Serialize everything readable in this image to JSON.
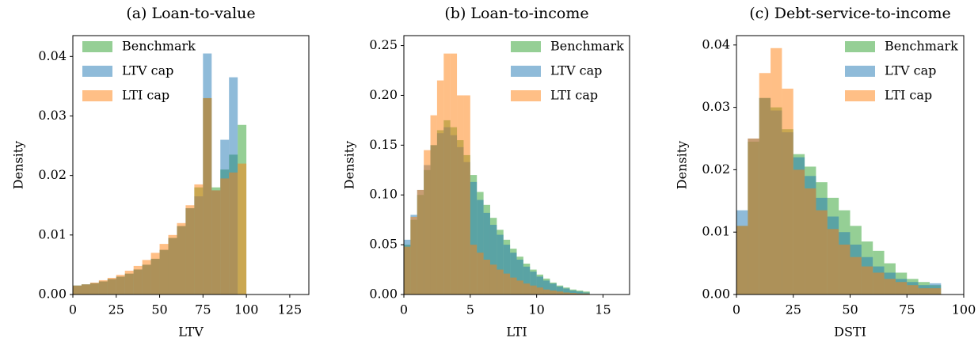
{
  "chart_data": [
    {
      "type": "histogram",
      "title": "(a) Loan-to-value",
      "x_label": "LTV",
      "y_label": "Density",
      "bins": [
        0,
        5,
        10,
        15,
        20,
        25,
        30,
        35,
        40,
        45,
        50,
        55,
        60,
        65,
        70,
        75,
        80,
        85,
        90,
        95,
        100
      ],
      "series": [
        {
          "name": "Benchmark",
          "color": "#2ca02c",
          "values": [
            0.0015,
            0.0017,
            0.0019,
            0.0022,
            0.0026,
            0.003,
            0.0035,
            0.0042,
            0.005,
            0.006,
            0.0075,
            0.0095,
            0.0115,
            0.0145,
            0.018,
            0.033,
            0.018,
            0.021,
            0.0235,
            0.0285
          ]
        },
        {
          "name": "LTV cap",
          "color": "#1f77b4",
          "values": [
            0.0015,
            0.0017,
            0.0019,
            0.0022,
            0.0026,
            0.003,
            0.0035,
            0.0042,
            0.005,
            0.006,
            0.0075,
            0.0095,
            0.0115,
            0.0145,
            0.0165,
            0.0405,
            0.0175,
            0.026,
            0.0365,
            0
          ]
        },
        {
          "name": "LTI cap",
          "color": "#ff7f0e",
          "values": [
            0.0015,
            0.0017,
            0.002,
            0.0024,
            0.0028,
            0.0033,
            0.004,
            0.0048,
            0.0058,
            0.007,
            0.0085,
            0.01,
            0.012,
            0.015,
            0.0185,
            0.033,
            0.0175,
            0.0195,
            0.0205,
            0.022
          ]
        }
      ],
      "opacity": 0.5,
      "legend": "upper left",
      "xlim": [
        0,
        136
      ],
      "xticks": [
        0,
        25,
        50,
        75,
        100,
        125
      ],
      "ylim": [
        0,
        0.0435
      ],
      "yticks": [
        {
          "value": 0,
          "label": "0.00"
        },
        {
          "value": 0.01,
          "label": "0.01"
        },
        {
          "value": 0.02,
          "label": "0.02"
        },
        {
          "value": 0.03,
          "label": "0.03"
        },
        {
          "value": 0.04,
          "label": "0.04"
        }
      ]
    },
    {
      "type": "histogram",
      "title": "(b) Loan-to-income",
      "x_label": "LTI",
      "y_label": "Density",
      "bins": [
        0,
        0.5,
        1,
        1.5,
        2,
        2.5,
        3,
        3.5,
        4,
        4.5,
        5,
        5.5,
        6,
        6.5,
        7,
        7.5,
        8,
        8.5,
        9,
        9.5,
        10,
        10.5,
        11,
        11.5,
        12,
        12.5,
        13,
        13.5,
        14
      ],
      "series": [
        {
          "name": "Benchmark",
          "color": "#2ca02c",
          "values": [
            0.05,
            0.075,
            0.1,
            0.125,
            0.15,
            0.165,
            0.175,
            0.168,
            0.155,
            0.14,
            0.12,
            0.103,
            0.09,
            0.077,
            0.065,
            0.055,
            0.046,
            0.038,
            0.031,
            0.025,
            0.02,
            0.016,
            0.012,
            0.009,
            0.007,
            0.005,
            0.004,
            0.003
          ]
        },
        {
          "name": "LTV cap",
          "color": "#1f77b4",
          "values": [
            0.055,
            0.08,
            0.105,
            0.13,
            0.15,
            0.162,
            0.168,
            0.16,
            0.148,
            0.133,
            0.113,
            0.095,
            0.082,
            0.07,
            0.06,
            0.05,
            0.042,
            0.035,
            0.028,
            0.023,
            0.018,
            0.014,
            0.011,
            0.008,
            0.006,
            0.004,
            0.003,
            0.002
          ]
        },
        {
          "name": "LTI cap",
          "color": "#ff7f0e",
          "values": [
            0.048,
            0.078,
            0.105,
            0.145,
            0.18,
            0.215,
            0.242,
            0.242,
            0.2,
            0.2,
            0.05,
            0.042,
            0.035,
            0.03,
            0.025,
            0.021,
            0.017,
            0.014,
            0.011,
            0.009,
            0.007,
            0.005,
            0.004,
            0.003,
            0.002,
            0.0015,
            0.001,
            0.001
          ]
        }
      ],
      "opacity": 0.5,
      "legend": "upper right",
      "xlim": [
        0,
        17
      ],
      "xticks": [
        0,
        5,
        10,
        15
      ],
      "ylim": [
        0,
        0.26
      ],
      "yticks": [
        {
          "value": 0,
          "label": "0.00"
        },
        {
          "value": 0.05,
          "label": "0.05"
        },
        {
          "value": 0.1,
          "label": "0.10"
        },
        {
          "value": 0.15,
          "label": "0.15"
        },
        {
          "value": 0.2,
          "label": "0.20"
        },
        {
          "value": 0.25,
          "label": "0.25"
        }
      ]
    },
    {
      "type": "histogram",
      "title": "(c) Debt-service-to-income",
      "x_label": "DSTI",
      "y_label": "Density",
      "bins": [
        0,
        5,
        10,
        15,
        20,
        25,
        30,
        35,
        40,
        45,
        50,
        55,
        60,
        65,
        70,
        75,
        80,
        85,
        90
      ],
      "series": [
        {
          "name": "Benchmark",
          "color": "#2ca02c",
          "values": [
            0.011,
            0.0245,
            0.0315,
            0.03,
            0.0265,
            0.0225,
            0.0205,
            0.018,
            0.0155,
            0.0135,
            0.011,
            0.0085,
            0.007,
            0.005,
            0.0035,
            0.0025,
            0.002,
            0.0015
          ]
        },
        {
          "name": "LTV cap",
          "color": "#1f77b4",
          "values": [
            0.0135,
            0.025,
            0.0315,
            0.0295,
            0.026,
            0.022,
            0.019,
            0.0155,
            0.0125,
            0.01,
            0.008,
            0.006,
            0.0045,
            0.0035,
            0.0025,
            0.002,
            0.0015,
            0.0018
          ]
        },
        {
          "name": "LTI cap",
          "color": "#ff7f0e",
          "values": [
            0.011,
            0.025,
            0.0355,
            0.0395,
            0.033,
            0.02,
            0.017,
            0.0135,
            0.0105,
            0.008,
            0.006,
            0.0045,
            0.0035,
            0.0025,
            0.002,
            0.0015,
            0.001,
            0.001
          ]
        }
      ],
      "opacity": 0.5,
      "legend": "upper right",
      "xlim": [
        0,
        100
      ],
      "xticks": [
        0,
        25,
        50,
        75,
        100
      ],
      "ylim": [
        0,
        0.0415
      ],
      "yticks": [
        {
          "value": 0,
          "label": "0.00"
        },
        {
          "value": 0.01,
          "label": "0.01"
        },
        {
          "value": 0.02,
          "label": "0.02"
        },
        {
          "value": 0.03,
          "label": "0.03"
        },
        {
          "value": 0.04,
          "label": "0.04"
        }
      ]
    }
  ]
}
